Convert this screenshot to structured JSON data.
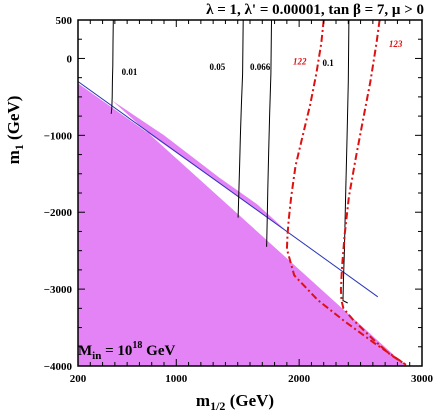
{
  "chart_data": {
    "type": "line",
    "title_parts": {
      "lambda": "λ",
      "lambda_value": " = 1, ",
      "lambda_prime": "λ' = 0.00001, tan ",
      "beta": "β",
      "beta_value": " = 7, ",
      "mu": "μ",
      "mu_value": " > 0"
    },
    "xlabel_main": "m",
    "xlabel_sub": "1/2",
    "xlabel_unit": " (GeV)",
    "ylabel_main": "m",
    "ylabel_sub": "1",
    "ylabel_unit": " (GeV)",
    "xlim": [
      200,
      3000
    ],
    "ylim": [
      -4000,
      500
    ],
    "x_ticks": [
      200,
      1000,
      2000,
      3000
    ],
    "x_tick_labels": [
      "200",
      "1000",
      "2000",
      "3000"
    ],
    "y_ticks": [
      500,
      0,
      -1000,
      -2000,
      -3000,
      -4000
    ],
    "y_tick_labels": [
      "500",
      "0",
      "−1000",
      "−2000",
      "−3000",
      "−4000"
    ],
    "annotation": {
      "main": "M",
      "sub": "in",
      "eq": " = 10",
      "sup": "18",
      "unit": " GeV"
    },
    "colors": {
      "excluded_region": "#e383f5",
      "blue_line": "#2a35b8",
      "black_contour": "#000000",
      "red_contour": "#dd1111"
    },
    "excluded_region": {
      "x": [
        200,
        200,
        2870,
        480,
        900,
        1350,
        1660,
        1900
      ],
      "y": [
        -325,
        -4000,
        -4000,
        -550,
        -1000,
        -1550,
        -1900,
        -2250
      ]
    },
    "blue_line": {
      "x": [
        200,
        2640
      ],
      "y": [
        -300,
        -3100
      ]
    },
    "series": [
      {
        "label": "0.01",
        "color": "#000000",
        "style": "solid",
        "x": [
          487,
          485,
          483,
          480,
          478,
          475,
          470
        ],
        "y": [
          500,
          200,
          -100,
          -300,
          -500,
          -650,
          -720
        ],
        "label_pos": [
          555,
          -215
        ]
      },
      {
        "label": "0.05",
        "color": "#000000",
        "style": "solid",
        "x": [
          1545,
          1540,
          1530,
          1522,
          1515,
          1508,
          1505,
          1503
        ],
        "y": [
          500,
          -200,
          -600,
          -1000,
          -1400,
          -1800,
          -1980,
          -2070
        ],
        "label_pos": [
          1270,
          -150
        ]
      },
      {
        "label": "0.066",
        "color": "#000000",
        "style": "solid",
        "x": [
          1775,
          1770,
          1760,
          1752,
          1745,
          1740,
          1737,
          1735
        ],
        "y": [
          500,
          -200,
          -700,
          -1200,
          -1700,
          -2100,
          -2350,
          -2450
        ],
        "label_pos": [
          1600,
          -150
        ]
      },
      {
        "label": "0.1",
        "color": "#000000",
        "style": "solid",
        "x": [
          2405,
          2400,
          2390,
          2378,
          2368,
          2360,
          2357,
          2395
        ],
        "y": [
          500,
          -300,
          -1000,
          -1800,
          -2500,
          -2900,
          -3150,
          -3180
        ],
        "label_pos": [
          2190,
          -100
        ]
      },
      {
        "label": "122",
        "color": "#dd1111",
        "style": "dashdot",
        "x": [
          2200,
          2180,
          2140,
          2090,
          2030,
          1970,
          1935,
          1915,
          1905,
          1900,
          1960,
          2150,
          2380,
          2610,
          2870
        ],
        "y": [
          500,
          200,
          -200,
          -600,
          -1000,
          -1400,
          -1800,
          -2100,
          -2300,
          -2480,
          -2820,
          -3140,
          -3430,
          -3700,
          -3985
        ],
        "label_pos": [
          1950,
          -80
        ]
      },
      {
        "label": "123",
        "color": "#dd1111",
        "style": "dashdot",
        "x": [
          2655,
          2630,
          2580,
          2520,
          2460,
          2405,
          2370,
          2350,
          2340,
          2345,
          2360,
          2440,
          2600,
          2740,
          2870
        ],
        "y": [
          500,
          200,
          -300,
          -800,
          -1300,
          -1800,
          -2300,
          -2700,
          -3000,
          -3150,
          -3250,
          -3400,
          -3650,
          -3850,
          -3985
        ],
        "label_pos": [
          2730,
          150
        ]
      }
    ]
  }
}
